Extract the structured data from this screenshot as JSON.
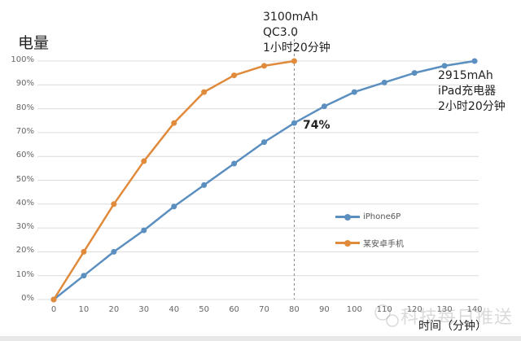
{
  "chart_data": {
    "type": "line",
    "title": "",
    "xlabel": "时间（分钟）",
    "ylabel": "电量",
    "x_ticks": [
      0,
      10,
      20,
      30,
      40,
      50,
      60,
      70,
      80,
      90,
      100,
      110,
      120,
      130,
      140
    ],
    "y_ticks": [
      "0%",
      "10%",
      "20%",
      "30%",
      "40%",
      "50%",
      "60%",
      "70%",
      "80%",
      "90%",
      "100%"
    ],
    "xlim": [
      0,
      140
    ],
    "ylim": [
      0,
      100
    ],
    "grid": "horizontal",
    "legend_position": "inside-right",
    "series": [
      {
        "name": "iPhone6P",
        "color": "#5b8fc0",
        "x": [
          0,
          10,
          20,
          30,
          40,
          50,
          60,
          70,
          80,
          90,
          100,
          110,
          120,
          130,
          140
        ],
        "values": [
          0,
          10,
          20,
          29,
          39,
          48,
          57,
          66,
          74,
          81,
          87,
          91,
          95,
          98,
          100
        ]
      },
      {
        "name": "某安卓手机",
        "color": "#e08a3c",
        "x": [
          0,
          10,
          20,
          30,
          40,
          50,
          60,
          70,
          80
        ],
        "values": [
          0,
          20,
          40,
          58,
          74,
          87,
          94,
          98,
          100
        ]
      }
    ],
    "annotations": [
      {
        "text": "3100mAh\nQC3.0\n1小时20分钟",
        "x": 80,
        "y": 100
      },
      {
        "text": "2915mAh\niPad充电器\n2小时20分钟",
        "x": 140,
        "y": 100
      },
      {
        "text": "74%",
        "x": 80,
        "y": 74,
        "bold": true
      }
    ],
    "reference_line": {
      "x": 80,
      "style": "dashed"
    }
  },
  "labels": {
    "ytitle": "电量",
    "xtitle": "时间（分钟）",
    "note_android": "3100mAh\nQC3.0\n1小时20分钟",
    "note_iphone": "2915mAh\niPad充电器\n2小时20分钟",
    "callout": "74%",
    "legend_iphone": "iPhone6P",
    "legend_android": "某安卓手机",
    "watermark": "科技每日推送"
  }
}
